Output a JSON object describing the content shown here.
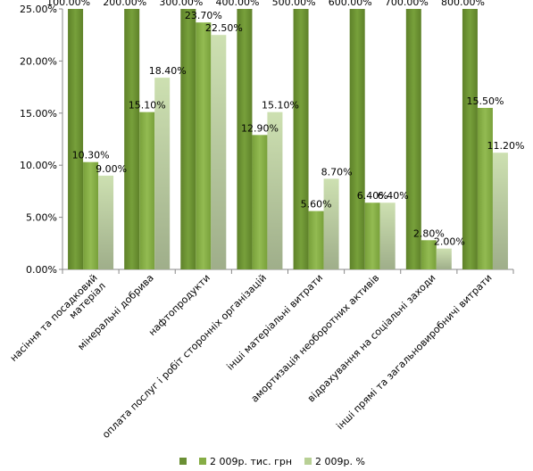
{
  "chart_data": {
    "type": "bar",
    "categories": [
      [
        "насіння та посадковий",
        "матеріал"
      ],
      [
        "мінеральні добрива"
      ],
      [
        "нафтопродукти"
      ],
      [
        "оплата послуг і робіт сторонніх організацій"
      ],
      [
        "інші матеріальні витрати"
      ],
      [
        "амортизація необоротних активів"
      ],
      [
        "відрахування на соціальні заходи"
      ],
      [
        "інші прямі та загальновиробничі витрати"
      ]
    ],
    "ylim": [
      0,
      25
    ],
    "yticks": [
      0,
      5,
      10,
      15,
      20,
      25
    ],
    "ytick_labels": [
      "0.00%",
      "5.00%",
      "10.00%",
      "15.00%",
      "20.00%",
      "25.00%"
    ],
    "grid": false,
    "legend_position": "bottom",
    "series": [
      {
        "name": "",
        "color": "#6a8f34",
        "values": [
          100,
          200,
          300,
          400,
          500,
          600,
          700,
          800
        ],
        "labels": [
          "100.00%",
          "200.00%",
          "300.00%",
          "400.00%",
          "500.00%",
          "600.00%",
          "700.00%",
          "800.00%"
        ]
      },
      {
        "name": "2 009р. тис. грн",
        "color": "#86ad45",
        "values": [
          10.3,
          15.1,
          23.7,
          12.9,
          5.6,
          6.4,
          2.8,
          15.5
        ],
        "labels": [
          "10.30%",
          "15.10%",
          "23.70%",
          "12.90%",
          "5.60%",
          "6.40%",
          "2.80%",
          "15.50%"
        ]
      },
      {
        "name": "2 009р. %",
        "color": "#b8d095",
        "values": [
          9.0,
          18.4,
          22.5,
          15.1,
          8.7,
          6.4,
          2.0,
          11.2
        ],
        "labels": [
          "9.00%",
          "18.40%",
          "22.50%",
          "15.10%",
          "8.70%",
          "6.40%",
          "2.00%",
          "11.20%"
        ]
      }
    ]
  }
}
